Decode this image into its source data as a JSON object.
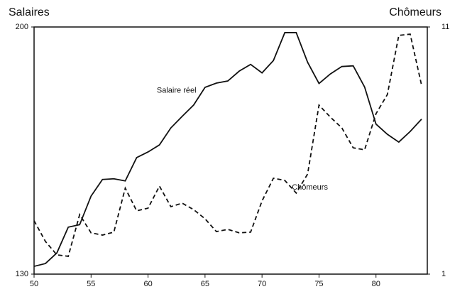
{
  "chart_data": {
    "type": "line",
    "y_label": "Salaires",
    "y2_label": "Chômeurs",
    "annotations": [
      {
        "text": "Salaire réel",
        "x": 62.5,
        "y": 182,
        "axis": "y"
      },
      {
        "text": "Chômeurs",
        "x": 74.2,
        "y": 4.5,
        "axis": "y2"
      }
    ],
    "x": [
      50,
      51,
      52,
      53,
      54,
      55,
      56,
      57,
      58,
      59,
      60,
      61,
      62,
      63,
      64,
      65,
      66,
      67,
      68,
      69,
      70,
      71,
      72,
      73,
      74,
      75,
      76,
      77,
      78,
      79,
      80,
      81,
      82,
      83,
      84
    ],
    "series": [
      {
        "name": "Salaire réel",
        "color": "#111111",
        "style": "solid",
        "axis": "y",
        "values": [
          132.2,
          133,
          136,
          143.3,
          144,
          152.1,
          156.8,
          157,
          156.4,
          163,
          164.6,
          166.6,
          171.4,
          174.7,
          177.9,
          182.9,
          184.1,
          184.7,
          187.5,
          189.4,
          187,
          190.5,
          198.4,
          198.4,
          190,
          184,
          186.7,
          188.8,
          189,
          183,
          172.5,
          169.6,
          167.4,
          170.4,
          173.9
        ]
      },
      {
        "name": "Chômeurs",
        "color": "#111111",
        "style": "dashed",
        "axis": "y2",
        "values": [
          3.16,
          2.32,
          1.78,
          1.72,
          3.41,
          2.67,
          2.58,
          2.7,
          4.48,
          3.56,
          3.67,
          4.56,
          3.73,
          3.87,
          3.61,
          3.24,
          2.72,
          2.81,
          2.67,
          2.7,
          3.96,
          4.88,
          4.79,
          4.28,
          5.05,
          7.84,
          7.35,
          6.92,
          6.11,
          6.03,
          7.49,
          8.27,
          10.66,
          10.71,
          8.64
        ]
      }
    ],
    "xlim": [
      50,
      84.5
    ],
    "xticks": [
      50,
      55,
      60,
      65,
      70,
      75,
      80
    ],
    "ylim": [
      130,
      200
    ],
    "yticks": [
      130,
      200
    ],
    "y2lim": [
      1,
      11
    ],
    "y2ticks": [
      1,
      11
    ]
  }
}
